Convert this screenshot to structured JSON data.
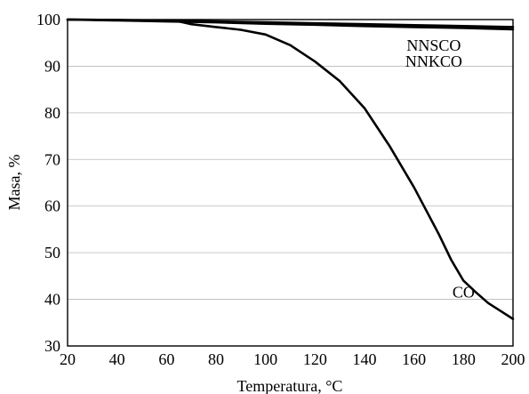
{
  "chart_data": {
    "type": "line",
    "title": "",
    "xlabel": "Temperatura, °C",
    "ylabel": "Masa, %",
    "xlim": [
      20,
      200
    ],
    "ylim": [
      30,
      100
    ],
    "xticks": [
      20,
      40,
      60,
      80,
      100,
      120,
      140,
      160,
      180,
      200
    ],
    "yticks": [
      30,
      40,
      50,
      60,
      70,
      80,
      90,
      100
    ],
    "grid": "horizontal",
    "legend": "none",
    "series": [
      {
        "name": "NNSCO",
        "x": [
          20,
          40,
          60,
          80,
          100,
          120,
          140,
          160,
          180,
          200
        ],
        "y": [
          100,
          99.9,
          99.8,
          99.6,
          99.4,
          99.2,
          99.0,
          98.8,
          98.6,
          98.4
        ]
      },
      {
        "name": "NNKCO",
        "x": [
          20,
          40,
          60,
          80,
          100,
          120,
          140,
          160,
          180,
          200
        ],
        "y": [
          100,
          99.8,
          99.6,
          99.4,
          99.1,
          98.9,
          98.6,
          98.4,
          98.2,
          97.9
        ]
      },
      {
        "name": "CO",
        "x": [
          20,
          40,
          60,
          65,
          70,
          80,
          90,
          100,
          110,
          120,
          130,
          140,
          150,
          160,
          170,
          175,
          180,
          185,
          190,
          195,
          200
        ],
        "y": [
          100,
          99.9,
          99.7,
          99.6,
          99.0,
          98.4,
          97.8,
          96.8,
          94.5,
          91.0,
          86.8,
          81.0,
          73.0,
          64.0,
          54.0,
          48.5,
          44.0,
          41.5,
          39.2,
          37.5,
          35.8
        ]
      }
    ],
    "annotations": [
      {
        "text": "NNSCO",
        "x": 168,
        "y": 94.5
      },
      {
        "text": "NNKCO",
        "x": 168,
        "y": 91.0
      },
      {
        "text": "CO",
        "x": 180,
        "y": 41.5
      }
    ]
  }
}
